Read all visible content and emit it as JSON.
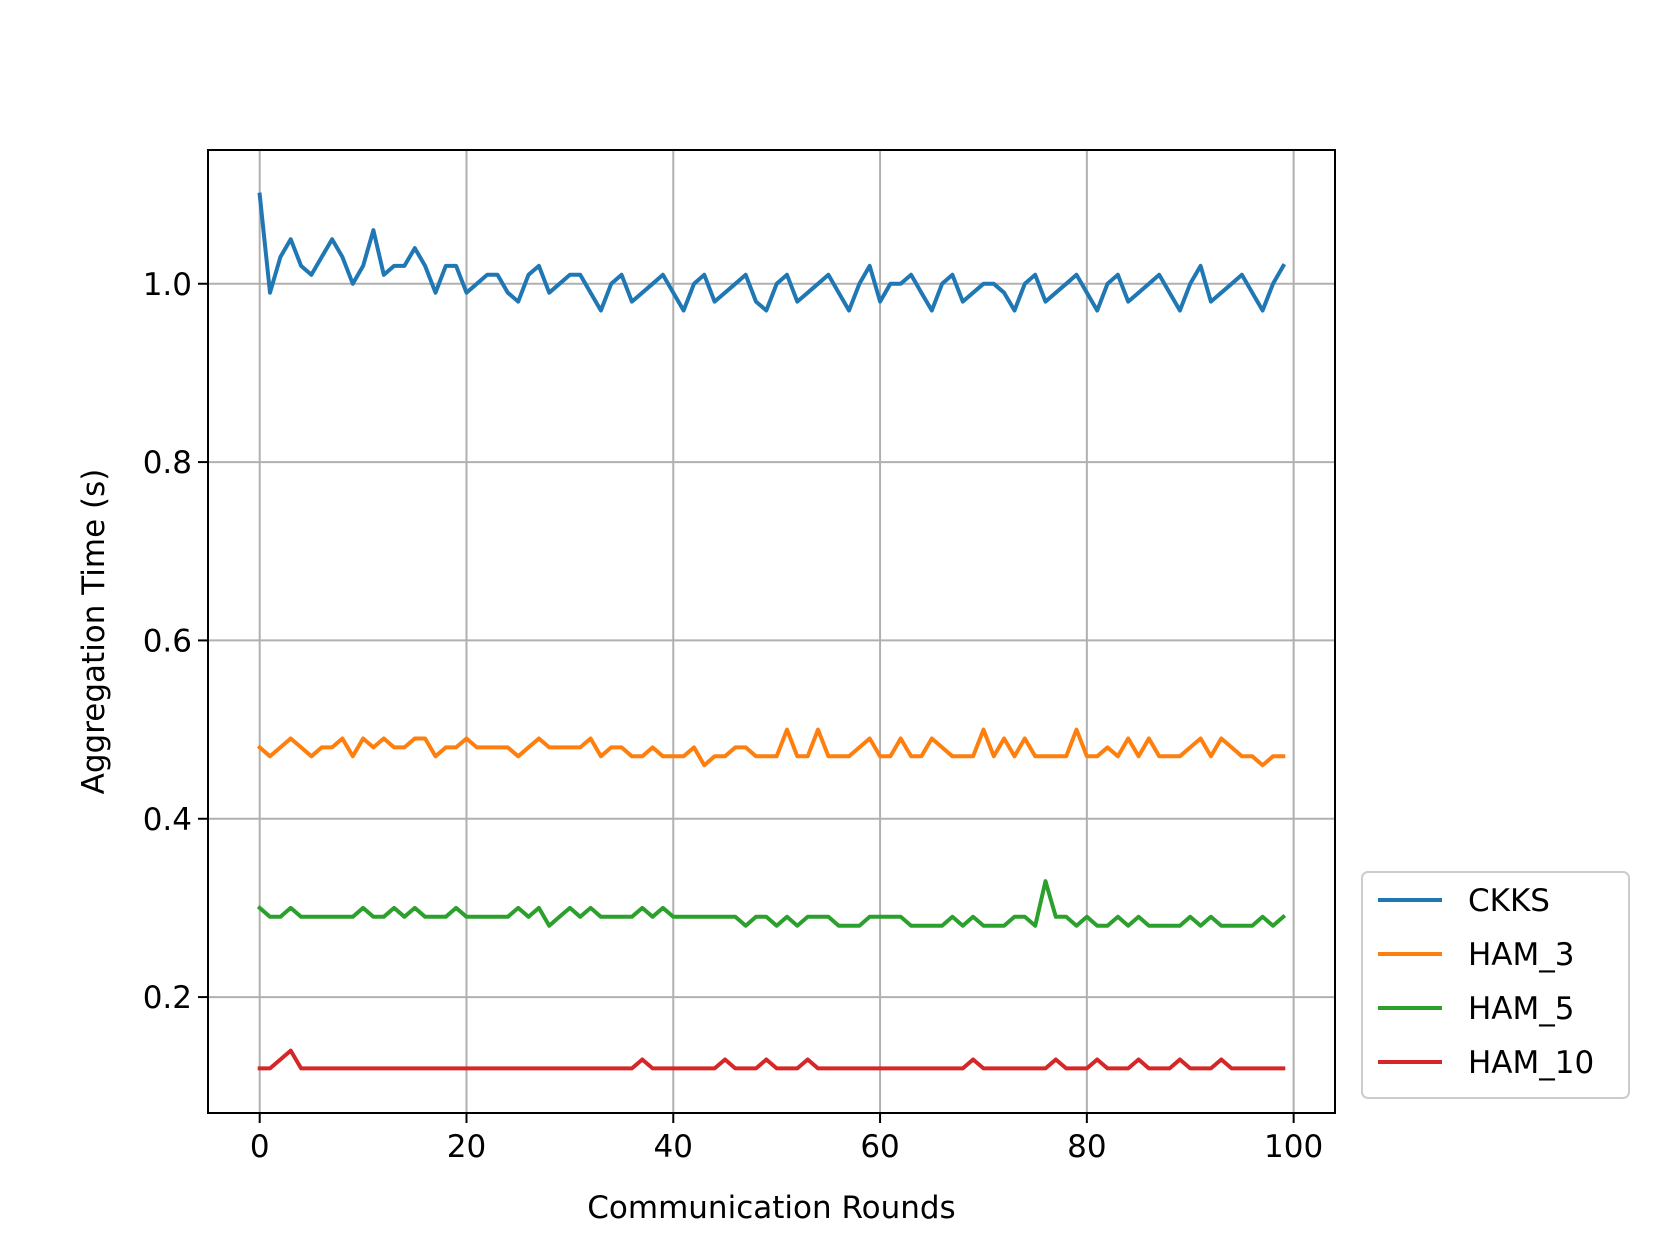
{
  "chart_data": {
    "type": "line",
    "title": "",
    "xlabel": "Communication Rounds",
    "ylabel": "Aggregation Time (s)",
    "xlim": [
      -5,
      104
    ],
    "ylim": [
      0.07,
      1.15
    ],
    "xticks": [
      0,
      20,
      40,
      60,
      80,
      100
    ],
    "yticks": [
      0.2,
      0.4,
      0.6,
      0.8,
      1.0
    ],
    "xtick_labels": [
      "0",
      "20",
      "40",
      "60",
      "80",
      "100"
    ],
    "ytick_labels": [
      "0.2",
      "0.4",
      "0.6",
      "0.8",
      "1.0"
    ],
    "grid": true,
    "legend_position": "outside-right-bottom",
    "x": [
      0,
      1,
      2,
      3,
      4,
      5,
      6,
      7,
      8,
      9,
      10,
      11,
      12,
      13,
      14,
      15,
      16,
      17,
      18,
      19,
      20,
      21,
      22,
      23,
      24,
      25,
      26,
      27,
      28,
      29,
      30,
      31,
      32,
      33,
      34,
      35,
      36,
      37,
      38,
      39,
      40,
      41,
      42,
      43,
      44,
      45,
      46,
      47,
      48,
      49,
      50,
      51,
      52,
      53,
      54,
      55,
      56,
      57,
      58,
      59,
      60,
      61,
      62,
      63,
      64,
      65,
      66,
      67,
      68,
      69,
      70,
      71,
      72,
      73,
      74,
      75,
      76,
      77,
      78,
      79,
      80,
      81,
      82,
      83,
      84,
      85,
      86,
      87,
      88,
      89,
      90,
      91,
      92,
      93,
      94,
      95,
      96,
      97,
      98,
      99
    ],
    "series": [
      {
        "name": "CKKS",
        "color": "#1f77b4",
        "values": [
          1.1,
          0.99,
          1.03,
          1.05,
          1.02,
          1.01,
          1.03,
          1.05,
          1.03,
          1.0,
          1.02,
          1.06,
          1.01,
          1.02,
          1.02,
          1.04,
          1.02,
          0.99,
          1.02,
          1.02,
          0.99,
          1.0,
          1.01,
          1.01,
          0.99,
          0.98,
          1.01,
          1.02,
          0.99,
          1.0,
          1.01,
          1.01,
          0.99,
          0.97,
          1.0,
          1.01,
          0.98,
          0.99,
          1.0,
          1.01,
          0.99,
          0.97,
          1.0,
          1.01,
          0.98,
          0.99,
          1.0,
          1.01,
          0.98,
          0.97,
          1.0,
          1.01,
          0.98,
          0.99,
          1.0,
          1.01,
          0.99,
          0.97,
          1.0,
          1.02,
          0.98,
          1.0,
          1.0,
          1.01,
          0.99,
          0.97,
          1.0,
          1.01,
          0.98,
          0.99,
          1.0,
          1.0,
          0.99,
          0.97,
          1.0,
          1.01,
          0.98,
          0.99,
          1.0,
          1.01,
          0.99,
          0.97,
          1.0,
          1.01,
          0.98,
          0.99,
          1.0,
          1.01,
          0.99,
          0.97,
          1.0,
          1.02,
          0.98,
          0.99,
          1.0,
          1.01,
          0.99,
          0.97,
          1.0,
          1.02
        ]
      },
      {
        "name": "HAM_3",
        "color": "#ff7f0e",
        "values": [
          0.48,
          0.47,
          0.48,
          0.49,
          0.48,
          0.47,
          0.48,
          0.48,
          0.49,
          0.47,
          0.49,
          0.48,
          0.49,
          0.48,
          0.48,
          0.49,
          0.49,
          0.47,
          0.48,
          0.48,
          0.49,
          0.48,
          0.48,
          0.48,
          0.48,
          0.47,
          0.48,
          0.49,
          0.48,
          0.48,
          0.48,
          0.48,
          0.49,
          0.47,
          0.48,
          0.48,
          0.47,
          0.47,
          0.48,
          0.47,
          0.47,
          0.47,
          0.48,
          0.46,
          0.47,
          0.47,
          0.48,
          0.48,
          0.47,
          0.47,
          0.47,
          0.5,
          0.47,
          0.47,
          0.5,
          0.47,
          0.47,
          0.47,
          0.48,
          0.49,
          0.47,
          0.47,
          0.49,
          0.47,
          0.47,
          0.49,
          0.48,
          0.47,
          0.47,
          0.47,
          0.5,
          0.47,
          0.49,
          0.47,
          0.49,
          0.47,
          0.47,
          0.47,
          0.47,
          0.5,
          0.47,
          0.47,
          0.48,
          0.47,
          0.49,
          0.47,
          0.49,
          0.47,
          0.47,
          0.47,
          0.48,
          0.49,
          0.47,
          0.49,
          0.48,
          0.47,
          0.47,
          0.46,
          0.47,
          0.47
        ]
      },
      {
        "name": "HAM_5",
        "color": "#2ca02c",
        "values": [
          0.3,
          0.29,
          0.29,
          0.3,
          0.29,
          0.29,
          0.29,
          0.29,
          0.29,
          0.29,
          0.3,
          0.29,
          0.29,
          0.3,
          0.29,
          0.3,
          0.29,
          0.29,
          0.29,
          0.3,
          0.29,
          0.29,
          0.29,
          0.29,
          0.29,
          0.3,
          0.29,
          0.3,
          0.28,
          0.29,
          0.3,
          0.29,
          0.3,
          0.29,
          0.29,
          0.29,
          0.29,
          0.3,
          0.29,
          0.3,
          0.29,
          0.29,
          0.29,
          0.29,
          0.29,
          0.29,
          0.29,
          0.28,
          0.29,
          0.29,
          0.28,
          0.29,
          0.28,
          0.29,
          0.29,
          0.29,
          0.28,
          0.28,
          0.28,
          0.29,
          0.29,
          0.29,
          0.29,
          0.28,
          0.28,
          0.28,
          0.28,
          0.29,
          0.28,
          0.29,
          0.28,
          0.28,
          0.28,
          0.29,
          0.29,
          0.28,
          0.33,
          0.29,
          0.29,
          0.28,
          0.29,
          0.28,
          0.28,
          0.29,
          0.28,
          0.29,
          0.28,
          0.28,
          0.28,
          0.28,
          0.29,
          0.28,
          0.29,
          0.28,
          0.28,
          0.28,
          0.28,
          0.29,
          0.28,
          0.29
        ]
      },
      {
        "name": "HAM_10",
        "color": "#d62728",
        "values": [
          0.12,
          0.12,
          0.13,
          0.14,
          0.12,
          0.12,
          0.12,
          0.12,
          0.12,
          0.12,
          0.12,
          0.12,
          0.12,
          0.12,
          0.12,
          0.12,
          0.12,
          0.12,
          0.12,
          0.12,
          0.12,
          0.12,
          0.12,
          0.12,
          0.12,
          0.12,
          0.12,
          0.12,
          0.12,
          0.12,
          0.12,
          0.12,
          0.12,
          0.12,
          0.12,
          0.12,
          0.12,
          0.13,
          0.12,
          0.12,
          0.12,
          0.12,
          0.12,
          0.12,
          0.12,
          0.13,
          0.12,
          0.12,
          0.12,
          0.13,
          0.12,
          0.12,
          0.12,
          0.13,
          0.12,
          0.12,
          0.12,
          0.12,
          0.12,
          0.12,
          0.12,
          0.12,
          0.12,
          0.12,
          0.12,
          0.12,
          0.12,
          0.12,
          0.12,
          0.13,
          0.12,
          0.12,
          0.12,
          0.12,
          0.12,
          0.12,
          0.12,
          0.13,
          0.12,
          0.12,
          0.12,
          0.13,
          0.12,
          0.12,
          0.12,
          0.13,
          0.12,
          0.12,
          0.12,
          0.13,
          0.12,
          0.12,
          0.12,
          0.13,
          0.12,
          0.12,
          0.12,
          0.12,
          0.12,
          0.12
        ]
      }
    ]
  }
}
